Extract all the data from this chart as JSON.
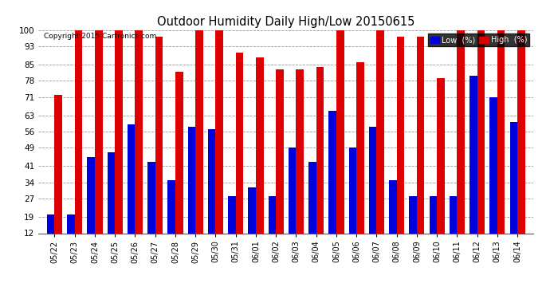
{
  "title": "Outdoor Humidity Daily High/Low 20150615",
  "copyright": "Copyright 2015 Cartronics.com",
  "legend_low": "Low  (%)",
  "legend_high": "High  (%)",
  "low_color": "#0000dd",
  "high_color": "#dd0000",
  "background_color": "#ffffff",
  "plot_bg_color": "#ffffff",
  "ylim": [
    12,
    100
  ],
  "yticks": [
    12,
    19,
    27,
    34,
    41,
    49,
    56,
    63,
    71,
    78,
    85,
    93,
    100
  ],
  "grid_color": "#999999",
  "dates": [
    "05/22",
    "05/23",
    "05/24",
    "05/25",
    "05/26",
    "05/27",
    "05/28",
    "05/29",
    "05/30",
    "05/31",
    "06/01",
    "06/02",
    "06/03",
    "06/04",
    "06/05",
    "06/06",
    "06/07",
    "06/08",
    "06/09",
    "06/10",
    "06/11",
    "06/12",
    "06/13",
    "06/14"
  ],
  "high_values": [
    72,
    100,
    100,
    100,
    100,
    97,
    82,
    100,
    100,
    90,
    88,
    83,
    83,
    84,
    100,
    86,
    100,
    97,
    97,
    79,
    100,
    100,
    100,
    100
  ],
  "low_values": [
    20,
    20,
    45,
    47,
    59,
    43,
    35,
    58,
    57,
    28,
    32,
    28,
    49,
    43,
    65,
    49,
    58,
    35,
    28,
    28,
    28,
    80,
    71,
    60
  ]
}
